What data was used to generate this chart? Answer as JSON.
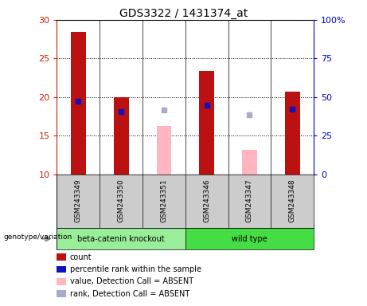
{
  "title": "GDS3322 / 1431374_at",
  "samples": [
    "GSM243349",
    "GSM243350",
    "GSM243351",
    "GSM243346",
    "GSM243347",
    "GSM243348"
  ],
  "ylim_left": [
    10,
    30
  ],
  "ylim_right": [
    0,
    100
  ],
  "yticks_left": [
    10,
    15,
    20,
    25,
    30
  ],
  "yticks_right": [
    0,
    25,
    50,
    75,
    100
  ],
  "ytick_labels_right": [
    "0",
    "25",
    "50",
    "75",
    "100%"
  ],
  "red_bars": [
    28.5,
    20.0,
    null,
    23.4,
    null,
    20.7
  ],
  "pink_bars": [
    null,
    null,
    16.3,
    null,
    13.2,
    null
  ],
  "blue_squares": [
    19.5,
    18.1,
    null,
    19.0,
    null,
    18.4
  ],
  "light_blue_squares": [
    null,
    null,
    18.3,
    null,
    17.7,
    null
  ],
  "bar_bottom": 10,
  "red_color": "#BB1111",
  "blue_color": "#1111BB",
  "pink_color": "#FFB6C1",
  "light_blue_color": "#AAAACC",
  "label_bg": "#CCCCCC",
  "knockout_bg": "#99EE99",
  "wildtype_bg": "#44DD44",
  "left_tick_color": "#CC2200",
  "right_tick_color": "#0000CC",
  "bar_width": 0.35,
  "legend_items": [
    [
      "#BB1111",
      "count"
    ],
    [
      "#1111BB",
      "percentile rank within the sample"
    ],
    [
      "#FFB6C1",
      "value, Detection Call = ABSENT"
    ],
    [
      "#AAAACC",
      "rank, Detection Call = ABSENT"
    ]
  ]
}
